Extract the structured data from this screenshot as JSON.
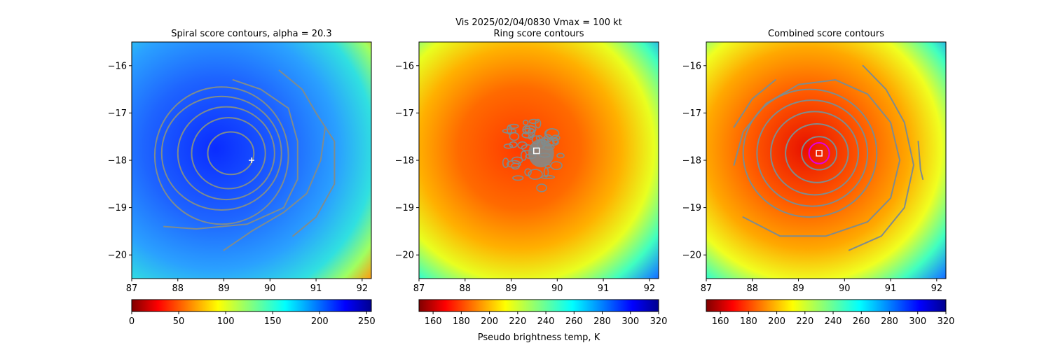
{
  "figure": {
    "suptitle": "Vis  2025/02/04/0830    Vmax = 100 kt",
    "colorbar_label": "Pseudo brightness temp, K"
  },
  "colors": {
    "contour": "#7f8c8d",
    "ring_marker": "#e000e0",
    "center_marker": "#ffffff",
    "spiral_background": "#1a4cff",
    "ring_background": "#ff6a00",
    "combined_background": "#ff5a00"
  },
  "chart_data": [
    {
      "type": "heatmap",
      "title": "Spiral score contours, alpha = 20.3",
      "colormap": "jet_r",
      "xlim": [
        87,
        92.2
      ],
      "ylim": [
        -20.5,
        -15.5
      ],
      "xticks": [
        87,
        88,
        89,
        90,
        91,
        92
      ],
      "yticks": [
        -16,
        -17,
        -18,
        -19,
        -20
      ],
      "grid": false,
      "colorbar": {
        "min": 0,
        "max": 255,
        "ticks": [
          0,
          50,
          100,
          150,
          200,
          250
        ],
        "label": ""
      },
      "center_marker": {
        "kind": "plus",
        "lon": 89.6,
        "lat": -18.0
      },
      "contours": [
        {
          "kind": "ellipse",
          "cx": 89.15,
          "cy": -17.85,
          "rx": 0.5,
          "ry": 0.45
        },
        {
          "kind": "ellipse",
          "cx": 89.1,
          "cy": -17.85,
          "rx": 0.8,
          "ry": 0.75
        },
        {
          "kind": "ellipse",
          "cx": 89.05,
          "cy": -17.85,
          "rx": 1.05,
          "ry": 0.98
        },
        {
          "kind": "ellipse",
          "cx": 88.95,
          "cy": -17.85,
          "rx": 1.3,
          "ry": 1.2
        },
        {
          "kind": "ellipse",
          "cx": 88.95,
          "cy": -17.9,
          "rx": 1.45,
          "ry": 1.45
        },
        {
          "kind": "path",
          "points": [
            [
              87.7,
              -19.4
            ],
            [
              88.4,
              -19.45
            ],
            [
              89.5,
              -19.35
            ],
            [
              90.3,
              -19.0
            ],
            [
              90.6,
              -18.4
            ],
            [
              90.6,
              -17.6
            ],
            [
              90.4,
              -16.9
            ],
            [
              89.8,
              -16.5
            ],
            [
              89.2,
              -16.3
            ]
          ]
        },
        {
          "kind": "path",
          "points": [
            [
              90.2,
              -16.1
            ],
            [
              90.7,
              -16.5
            ],
            [
              91.0,
              -17.0
            ],
            [
              91.4,
              -17.6
            ],
            [
              91.4,
              -18.5
            ],
            [
              91.0,
              -19.2
            ],
            [
              90.5,
              -19.6
            ]
          ]
        },
        {
          "kind": "path",
          "points": [
            [
              89.0,
              -19.9
            ],
            [
              89.6,
              -19.5
            ],
            [
              90.3,
              -19.1
            ],
            [
              90.8,
              -18.7
            ],
            [
              91.1,
              -18.0
            ],
            [
              91.2,
              -17.3
            ]
          ]
        }
      ]
    },
    {
      "type": "heatmap",
      "title": "Ring score contours",
      "colormap": "jet_r",
      "xlim": [
        87,
        92.2
      ],
      "ylim": [
        -20.5,
        -15.5
      ],
      "xticks": [
        87,
        88,
        89,
        90,
        91,
        92
      ],
      "yticks": [
        -16,
        -17,
        -18,
        -19,
        -20
      ],
      "grid": false,
      "colorbar": {
        "min": 150,
        "max": 320,
        "ticks": [
          160,
          180,
          200,
          220,
          240,
          260,
          280,
          300,
          320
        ],
        "label": "Pseudo brightness temp, K"
      },
      "center_marker": {
        "kind": "square",
        "lon": 89.55,
        "lat": -17.8
      },
      "contours": [
        {
          "kind": "blob",
          "cx": 89.4,
          "cy": -17.9,
          "rx": 0.7,
          "ry": 0.75
        }
      ]
    },
    {
      "type": "heatmap",
      "title": "Combined score contours",
      "colormap": "jet_r",
      "xlim": [
        87,
        92.2
      ],
      "ylim": [
        -20.5,
        -15.5
      ],
      "xticks": [
        87,
        88,
        89,
        90,
        91,
        92
      ],
      "yticks": [
        -16,
        -17,
        -18,
        -19,
        -20
      ],
      "grid": false,
      "colorbar": {
        "min": 150,
        "max": 320,
        "ticks": [
          160,
          180,
          200,
          220,
          240,
          260,
          280,
          300,
          320
        ],
        "label": ""
      },
      "center_marker": {
        "kind": "square",
        "lon": 89.45,
        "lat": -17.85
      },
      "ring_marker": {
        "lon": 89.45,
        "lat": -17.85,
        "radius_deg": 0.22
      },
      "contours": [
        {
          "kind": "ellipse",
          "cx": 89.45,
          "cy": -17.85,
          "rx": 0.38,
          "ry": 0.35
        },
        {
          "kind": "ellipse",
          "cx": 89.4,
          "cy": -17.85,
          "rx": 0.68,
          "ry": 0.62
        },
        {
          "kind": "ellipse",
          "cx": 89.35,
          "cy": -17.85,
          "rx": 0.95,
          "ry": 0.88
        },
        {
          "kind": "ellipse",
          "cx": 89.3,
          "cy": -17.85,
          "rx": 1.2,
          "ry": 1.12
        },
        {
          "kind": "ellipse",
          "cx": 89.25,
          "cy": -17.85,
          "rx": 1.45,
          "ry": 1.35
        },
        {
          "kind": "path",
          "points": [
            [
              87.6,
              -18.1
            ],
            [
              87.8,
              -17.4
            ],
            [
              88.3,
              -16.8
            ],
            [
              89.0,
              -16.4
            ],
            [
              89.8,
              -16.3
            ],
            [
              90.5,
              -16.6
            ],
            [
              91.0,
              -17.2
            ],
            [
              91.2,
              -18.0
            ],
            [
              91.0,
              -18.8
            ],
            [
              90.5,
              -19.3
            ],
            [
              89.6,
              -19.6
            ],
            [
              88.6,
              -19.6
            ],
            [
              87.8,
              -19.2
            ]
          ]
        },
        {
          "kind": "path",
          "points": [
            [
              90.4,
              -16.0
            ],
            [
              90.9,
              -16.5
            ],
            [
              91.3,
              -17.2
            ],
            [
              91.5,
              -18.1
            ],
            [
              91.3,
              -19.0
            ],
            [
              90.8,
              -19.6
            ],
            [
              90.1,
              -19.9
            ]
          ]
        },
        {
          "kind": "path",
          "points": [
            [
              87.6,
              -17.3
            ],
            [
              88.0,
              -16.7
            ],
            [
              88.5,
              -16.3
            ]
          ]
        },
        {
          "kind": "path",
          "points": [
            [
              91.6,
              -17.6
            ],
            [
              91.65,
              -18.2
            ],
            [
              91.7,
              -18.4
            ]
          ]
        }
      ]
    }
  ]
}
